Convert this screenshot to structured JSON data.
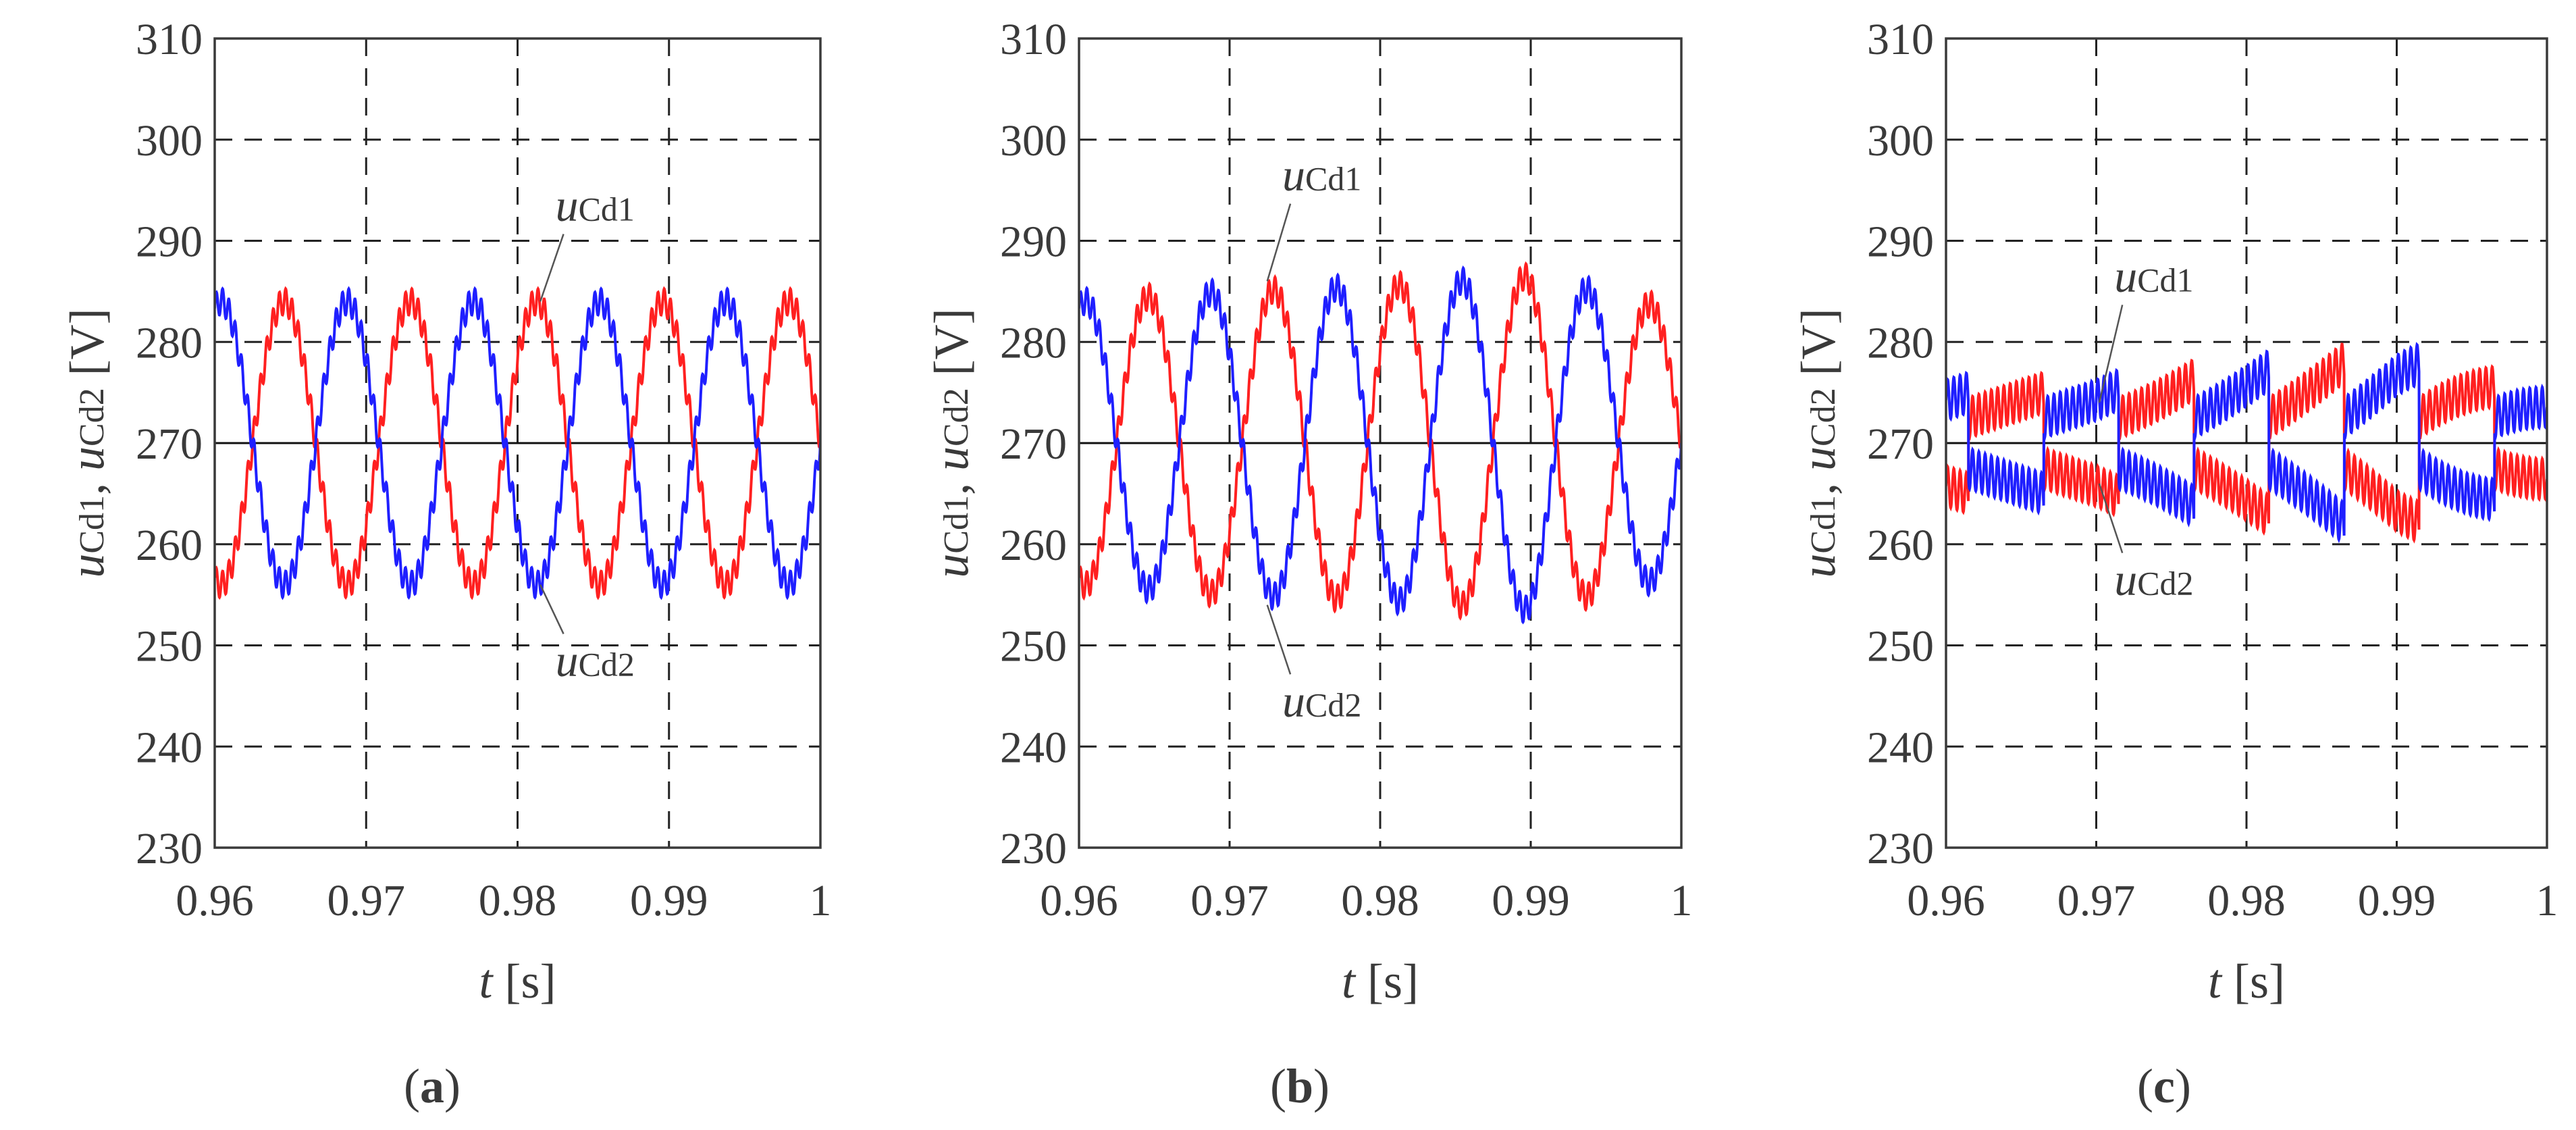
{
  "figure": {
    "panel_labels": [
      "(a)",
      "(b)",
      "(c)"
    ],
    "colors": {
      "uCd1": "#ff2020",
      "uCd2": "#1f1fff",
      "reference": "#111111",
      "grid": "#222222",
      "frame": "#3a3a3a"
    }
  },
  "chart_data": [
    {
      "type": "line",
      "panel": "(a)",
      "title": "",
      "xlabel": "t [s]",
      "ylabel": "uCd1, uCd2 [V]",
      "xlim": [
        0.96,
        1.0
      ],
      "ylim": [
        230,
        310
      ],
      "x_ticks": [
        0.96,
        0.97,
        0.98,
        0.99,
        1
      ],
      "x_tick_labels": [
        "0.96",
        "0.97",
        "0.98",
        "0.99",
        "1"
      ],
      "y_ticks": [
        230,
        240,
        250,
        260,
        270,
        280,
        290,
        300,
        310
      ],
      "y_tick_labels": [
        "230",
        "240",
        "250",
        "260",
        "270",
        "280",
        "290",
        "300",
        "310"
      ],
      "grid": true,
      "reference_line": 270,
      "series": [
        {
          "name": "uCd1",
          "kind": "sine",
          "mean": 270,
          "amplitude": 14,
          "frequency_hz": 120,
          "phase_deg": 180,
          "ripple_amplitude": 1.3,
          "ripple_frequency_hz": 2400
        },
        {
          "name": "uCd2",
          "kind": "sine",
          "mean": 270,
          "amplitude": 14,
          "frequency_hz": 120,
          "phase_deg": 0,
          "ripple_amplitude": 1.3,
          "ripple_frequency_hz": 2400
        }
      ],
      "annotations": [
        {
          "series": "uCd1",
          "main": "u",
          "sub": "Cd1",
          "text": "uCd1",
          "anchor": [
            0.9815,
            284
          ],
          "label_at": [
            0.9825,
            292
          ]
        },
        {
          "series": "uCd2",
          "main": "u",
          "sub": "Cd2",
          "text": "uCd2",
          "anchor": [
            0.9815,
            256
          ],
          "label_at": [
            0.9825,
            247
          ]
        }
      ]
    },
    {
      "type": "line",
      "panel": "(b)",
      "title": "",
      "xlabel": "t [s]",
      "ylabel": "uCd1, uCd2 [V]",
      "xlim": [
        0.96,
        1.0
      ],
      "ylim": [
        230,
        310
      ],
      "x_ticks": [
        0.96,
        0.97,
        0.98,
        0.99,
        1
      ],
      "x_tick_labels": [
        "0.96",
        "0.97",
        "0.98",
        "0.99",
        "1"
      ],
      "y_ticks": [
        230,
        240,
        250,
        260,
        270,
        280,
        290,
        300,
        310
      ],
      "y_tick_labels": [
        "230",
        "240",
        "250",
        "260",
        "270",
        "280",
        "290",
        "300",
        "310"
      ],
      "grid": true,
      "reference_line": 270,
      "series": [
        {
          "name": "uCd1",
          "kind": "sine_varying",
          "mean": 270,
          "amplitude_points": [
            [
              0.96,
              14
            ],
            [
              0.97,
              15
            ],
            [
              0.98,
              15.5
            ],
            [
              0.99,
              16.5
            ],
            [
              1.0,
              13
            ]
          ],
          "frequency_hz": 120,
          "phase_deg": 180,
          "ripple_amplitude": 1.3,
          "ripple_frequency_hz": 2400
        },
        {
          "name": "uCd2",
          "kind": "sine_varying",
          "mean": 270,
          "amplitude_points": [
            [
              0.96,
              14
            ],
            [
              0.97,
              15
            ],
            [
              0.98,
              15.5
            ],
            [
              0.99,
              16.5
            ],
            [
              1.0,
              13
            ]
          ],
          "frequency_hz": 120,
          "phase_deg": 0,
          "ripple_amplitude": 1.3,
          "ripple_frequency_hz": 2400
        }
      ],
      "annotations": [
        {
          "series": "uCd1",
          "main": "u",
          "sub": "Cd1",
          "text": "uCd1",
          "anchor": [
            0.9725,
            286
          ],
          "label_at": [
            0.9735,
            295
          ]
        },
        {
          "series": "uCd2",
          "main": "u",
          "sub": "Cd2",
          "text": "uCd2",
          "anchor": [
            0.9725,
            254
          ],
          "label_at": [
            0.9735,
            243
          ]
        }
      ]
    },
    {
      "type": "line",
      "panel": "(c)",
      "title": "",
      "xlabel": "t [s]",
      "ylabel": "uCd1, uCd2 [V]",
      "xlim": [
        0.96,
        1.0
      ],
      "ylim": [
        230,
        310
      ],
      "x_ticks": [
        0.96,
        0.97,
        0.98,
        0.99,
        1
      ],
      "x_tick_labels": [
        "0.96",
        "0.97",
        "0.98",
        "0.99",
        "1"
      ],
      "y_ticks": [
        230,
        240,
        250,
        260,
        270,
        280,
        290,
        300,
        310
      ],
      "y_tick_labels": [
        "230",
        "240",
        "250",
        "260",
        "270",
        "280",
        "290",
        "300",
        "310"
      ],
      "grid": true,
      "reference_line": 270,
      "series": [
        {
          "name": "uCd1",
          "kind": "square_ramp",
          "mean": 270,
          "period_s": 0.01,
          "start_offset_s": 0.0015,
          "ramp_from": 2.5,
          "ramp_to_points": [
            [
              0.96,
              5
            ],
            [
              0.97,
              5
            ],
            [
              0.98,
              7
            ],
            [
              0.99,
              8.5
            ],
            [
              1.0,
              4
            ]
          ],
          "polarity": 1,
          "ripple_amplitude": 2,
          "ripple_frequency_hz": 2400
        },
        {
          "name": "uCd2",
          "kind": "square_ramp",
          "mean": 270,
          "period_s": 0.01,
          "start_offset_s": 0.0015,
          "ramp_from": 2.5,
          "ramp_to_points": [
            [
              0.96,
              5
            ],
            [
              0.97,
              5
            ],
            [
              0.98,
              7
            ],
            [
              0.99,
              8.5
            ],
            [
              1.0,
              4
            ]
          ],
          "polarity": -1,
          "ripple_amplitude": 2,
          "ripple_frequency_hz": 2400
        }
      ],
      "annotations": [
        {
          "series": "uCd1",
          "main": "u",
          "sub": "Cd1",
          "text": "uCd1",
          "anchor": [
            0.9702,
            274
          ],
          "label_at": [
            0.9712,
            285
          ]
        },
        {
          "series": "uCd2",
          "main": "u",
          "sub": "Cd2",
          "text": "uCd2",
          "anchor": [
            0.9702,
            266
          ],
          "label_at": [
            0.9712,
            255
          ]
        }
      ]
    }
  ]
}
